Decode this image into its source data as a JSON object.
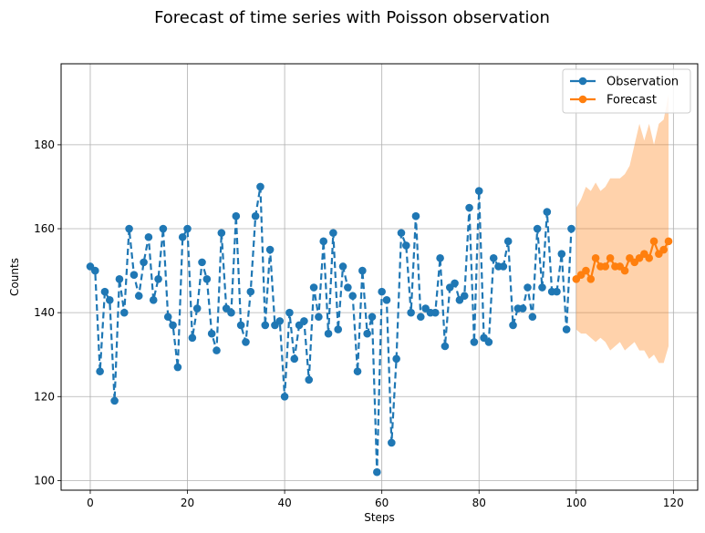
{
  "chart_data": {
    "type": "line",
    "title": "Forecast of time series with Poisson observation",
    "xlabel": "Steps",
    "ylabel": "Counts",
    "xlim": [
      -6,
      125
    ],
    "ylim": [
      97.7,
      199.3
    ],
    "xticks": [
      0,
      20,
      40,
      60,
      80,
      100,
      120
    ],
    "yticks": [
      100,
      120,
      140,
      160,
      180
    ],
    "grid": true,
    "legend_position": "top-right",
    "series": [
      {
        "name": "Observation",
        "color": "#1f77b4",
        "style": "dashed-with-markers",
        "x": [
          0,
          1,
          2,
          3,
          4,
          5,
          6,
          7,
          8,
          9,
          10,
          11,
          12,
          13,
          14,
          15,
          16,
          17,
          18,
          19,
          20,
          21,
          22,
          23,
          24,
          25,
          26,
          27,
          28,
          29,
          30,
          31,
          32,
          33,
          34,
          35,
          36,
          37,
          38,
          39,
          40,
          41,
          42,
          43,
          44,
          45,
          46,
          47,
          48,
          49,
          50,
          51,
          52,
          53,
          54,
          55,
          56,
          57,
          58,
          59,
          60,
          61,
          62,
          63,
          64,
          65,
          66,
          67,
          68,
          69,
          70,
          71,
          72,
          73,
          74,
          75,
          76,
          77,
          78,
          79,
          80,
          81,
          82,
          83,
          84,
          85,
          86,
          87,
          88,
          89,
          90,
          91,
          92,
          93,
          94,
          95,
          96,
          97,
          98,
          99
        ],
        "values": [
          151,
          150,
          126,
          145,
          143,
          119,
          148,
          140,
          160,
          149,
          144,
          152,
          158,
          143,
          148,
          160,
          139,
          137,
          127,
          158,
          160,
          134,
          141,
          152,
          148,
          135,
          131,
          159,
          141,
          140,
          163,
          137,
          133,
          145,
          163,
          170,
          137,
          155,
          137,
          138,
          120,
          140,
          129,
          137,
          138,
          124,
          146,
          139,
          157,
          135,
          159,
          136,
          151,
          146,
          144,
          126,
          150,
          135,
          139,
          102,
          145,
          143,
          109,
          129,
          159,
          156,
          140,
          163,
          139,
          141,
          140,
          140,
          153,
          132,
          146,
          147,
          143,
          144,
          165,
          133,
          169,
          134,
          133,
          153,
          151,
          151,
          157,
          137,
          141,
          141,
          146,
          139,
          160,
          146,
          164,
          145,
          145,
          154,
          136,
          160
        ]
      },
      {
        "name": "Forecast",
        "color": "#ff7f0e",
        "style": "solid-with-markers",
        "x": [
          100,
          101,
          102,
          103,
          104,
          105,
          106,
          107,
          108,
          109,
          110,
          111,
          112,
          113,
          114,
          115,
          116,
          117,
          118,
          119
        ],
        "values": [
          148,
          149,
          150,
          148,
          153,
          151,
          151,
          153,
          151,
          151,
          150,
          153,
          152,
          153,
          154,
          153,
          157,
          154,
          155,
          157
        ],
        "interval_upper": [
          165,
          167,
          170,
          169,
          171,
          169,
          170,
          172,
          172,
          172,
          173,
          175,
          180,
          185,
          181,
          185,
          180,
          185,
          186,
          192
        ],
        "interval_lower": [
          136,
          135,
          135,
          134,
          133,
          134,
          133,
          131,
          132,
          133,
          131,
          132,
          133,
          131,
          131,
          129,
          130,
          128,
          128,
          132
        ]
      }
    ]
  }
}
